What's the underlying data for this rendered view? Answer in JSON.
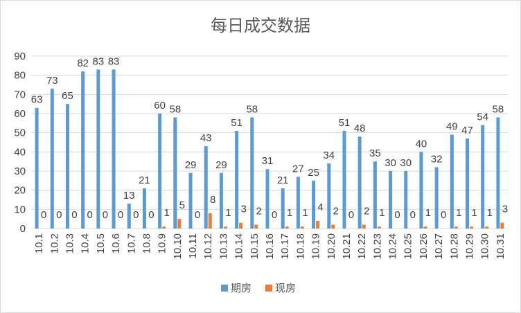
{
  "chart_data": {
    "type": "bar",
    "title": "每日成交数据",
    "xlabel": "",
    "ylabel": "",
    "ylim": [
      0,
      90
    ],
    "yticks": [
      0,
      10,
      20,
      30,
      40,
      50,
      60,
      70,
      80,
      90
    ],
    "grid": true,
    "legend_position": "bottom",
    "categories": [
      "10.1",
      "10.2",
      "10.3",
      "10.4",
      "10.5",
      "10.6",
      "10.7",
      "10.8",
      "10.9",
      "10.10",
      "10.11",
      "10.12",
      "10.13",
      "10.14",
      "10.15",
      "10.16",
      "10.17",
      "10.18",
      "10.19",
      "10.20",
      "10.21",
      "10.22",
      "10.23",
      "10.24",
      "10.25",
      "10.26",
      "10.27",
      "10.28",
      "10.29",
      "10.30",
      "10.31"
    ],
    "series": [
      {
        "name": "期房",
        "color": "#5b9bd5",
        "values": [
          63,
          73,
          65,
          82,
          83,
          83,
          13,
          21,
          60,
          58,
          29,
          43,
          29,
          51,
          58,
          31,
          21,
          27,
          25,
          34,
          51,
          48,
          35,
          30,
          30,
          40,
          32,
          49,
          47,
          54,
          58
        ]
      },
      {
        "name": "现房",
        "color": "#ed7d31",
        "values": [
          0,
          0,
          0,
          0,
          0,
          0,
          0,
          0,
          1,
          5,
          0,
          8,
          1,
          3,
          2,
          0,
          1,
          1,
          4,
          2,
          0,
          2,
          1,
          0,
          0,
          1,
          0,
          1,
          1,
          1,
          3
        ]
      }
    ]
  }
}
